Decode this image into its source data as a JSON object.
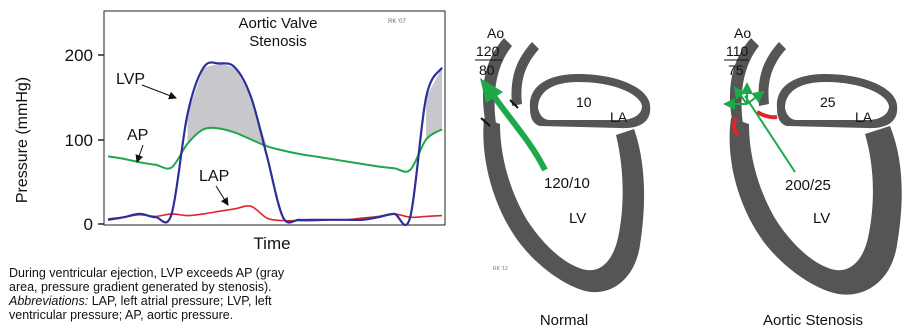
{
  "chart": {
    "title_line1": "Aortic Valve",
    "title_line2": "Stenosis",
    "credit": "RK '07",
    "ylabel": "Pressure (mmHg)",
    "xlabel": "Time",
    "yticks": [
      "200",
      "100",
      "0"
    ],
    "labels": {
      "lvp": "LVP",
      "ap": "AP",
      "lap": "LAP"
    },
    "colors": {
      "lvp": "#2e2e9a",
      "ap": "#1ea84a",
      "lap": "#e0242a",
      "gradient_fill": "#c8c8cc"
    }
  },
  "chart_data": {
    "type": "line",
    "ylim": [
      0,
      230
    ],
    "yticks": [
      0,
      100,
      200
    ],
    "series": [
      {
        "name": "LVP",
        "values": [
          5,
          8,
          12,
          8,
          12,
          130,
          185,
          190,
          185,
          150,
          80,
          8,
          5,
          5,
          5,
          5,
          5,
          8,
          12,
          8,
          150,
          185
        ]
      },
      {
        "name": "AP",
        "values": [
          80,
          77,
          73,
          70,
          67,
          95,
          112,
          113,
          108,
          100,
          92,
          87,
          83,
          80,
          77,
          74,
          71,
          68,
          66,
          64,
          100,
          112
        ]
      },
      {
        "name": "LAP",
        "values": [
          6,
          8,
          11,
          9,
          12,
          10,
          12,
          15,
          18,
          21,
          7,
          4,
          4,
          4,
          5,
          5,
          7,
          9,
          12,
          8,
          9,
          10
        ]
      }
    ]
  },
  "caption": {
    "line1": "During ventricular ejection, LVP exceeds AP (gray",
    "line2": "area, pressure gradient generated by stenosis).",
    "abbrev_label": "Abbreviations:",
    "abbrev_text": " LAP, left atrial pressure; LVP, left",
    "line4": "ventricular pressure; AP, aortic pressure."
  },
  "heart_normal": {
    "ao": "Ao",
    "ap_systolic": "120",
    "ap_diastolic": "80",
    "la_value": "10",
    "la": "LA",
    "lv_pressure": "120/10",
    "lv": "LV",
    "credit": "RK '12",
    "title": "Normal"
  },
  "heart_stenosis": {
    "ao": "Ao",
    "ap_systolic": "110",
    "ap_diastolic": "75",
    "la_value": "25",
    "la": "LA",
    "lv_pressure": "200/25",
    "lv": "LV",
    "title": "Aortic Stenosis"
  }
}
